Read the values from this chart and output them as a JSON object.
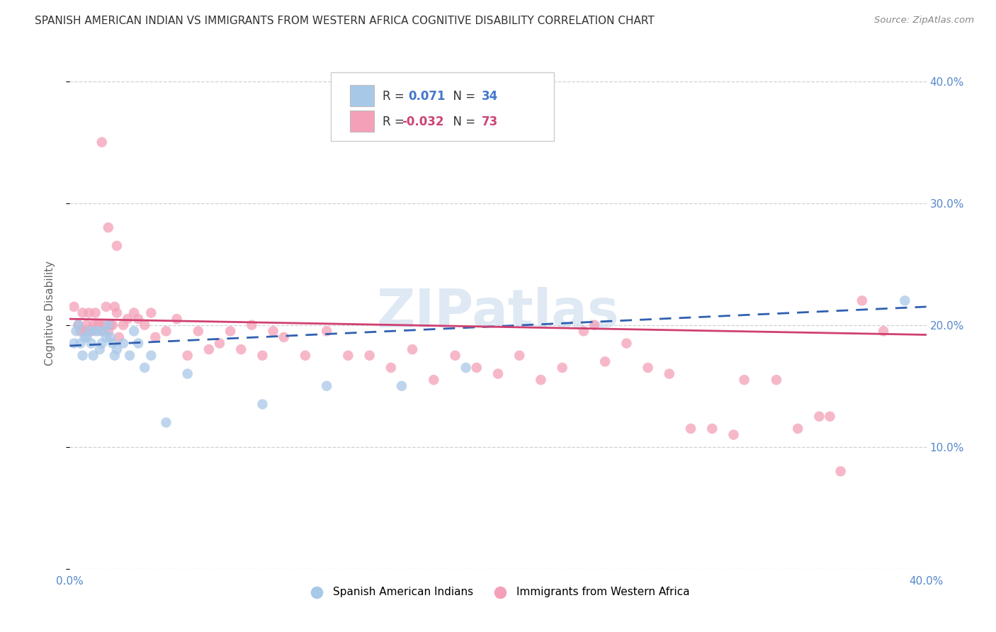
{
  "title": "SPANISH AMERICAN INDIAN VS IMMIGRANTS FROM WESTERN AFRICA COGNITIVE DISABILITY CORRELATION CHART",
  "source": "Source: ZipAtlas.com",
  "ylabel": "Cognitive Disability",
  "color_blue": "#A8C8E8",
  "color_pink": "#F4A0B8",
  "trendline_blue_color": "#3060B0",
  "trendline_pink_color": "#D04070",
  "watermark": "ZIPatlas",
  "background_color": "#FFFFFF",
  "blue_scatter_x": [
    0.002,
    0.003,
    0.004,
    0.005,
    0.006,
    0.007,
    0.008,
    0.009,
    0.01,
    0.011,
    0.012,
    0.013,
    0.014,
    0.015,
    0.016,
    0.017,
    0.018,
    0.019,
    0.02,
    0.021,
    0.022,
    0.025,
    0.028,
    0.03,
    0.032,
    0.035,
    0.038,
    0.045,
    0.055,
    0.09,
    0.12,
    0.155,
    0.185,
    0.39
  ],
  "blue_scatter_y": [
    0.185,
    0.195,
    0.2,
    0.185,
    0.175,
    0.19,
    0.19,
    0.195,
    0.185,
    0.175,
    0.195,
    0.195,
    0.18,
    0.185,
    0.195,
    0.19,
    0.2,
    0.19,
    0.185,
    0.175,
    0.18,
    0.185,
    0.175,
    0.195,
    0.185,
    0.165,
    0.175,
    0.12,
    0.16,
    0.135,
    0.15,
    0.15,
    0.165,
    0.22
  ],
  "pink_scatter_x": [
    0.002,
    0.004,
    0.005,
    0.006,
    0.007,
    0.008,
    0.009,
    0.01,
    0.011,
    0.012,
    0.013,
    0.014,
    0.015,
    0.016,
    0.017,
    0.018,
    0.019,
    0.02,
    0.021,
    0.022,
    0.023,
    0.025,
    0.027,
    0.03,
    0.032,
    0.035,
    0.038,
    0.04,
    0.045,
    0.05,
    0.055,
    0.06,
    0.065,
    0.07,
    0.075,
    0.08,
    0.085,
    0.09,
    0.095,
    0.1,
    0.11,
    0.12,
    0.13,
    0.14,
    0.15,
    0.16,
    0.17,
    0.18,
    0.19,
    0.2,
    0.21,
    0.22,
    0.23,
    0.24,
    0.245,
    0.25,
    0.26,
    0.27,
    0.28,
    0.29,
    0.3,
    0.31,
    0.315,
    0.33,
    0.34,
    0.35,
    0.355,
    0.37,
    0.38,
    0.015,
    0.018,
    0.022,
    0.36
  ],
  "pink_scatter_y": [
    0.215,
    0.2,
    0.195,
    0.21,
    0.195,
    0.2,
    0.21,
    0.195,
    0.2,
    0.21,
    0.2,
    0.2,
    0.195,
    0.2,
    0.215,
    0.195,
    0.2,
    0.2,
    0.215,
    0.21,
    0.19,
    0.2,
    0.205,
    0.21,
    0.205,
    0.2,
    0.21,
    0.19,
    0.195,
    0.205,
    0.175,
    0.195,
    0.18,
    0.185,
    0.195,
    0.18,
    0.2,
    0.175,
    0.195,
    0.19,
    0.175,
    0.195,
    0.175,
    0.175,
    0.165,
    0.18,
    0.155,
    0.175,
    0.165,
    0.16,
    0.175,
    0.155,
    0.165,
    0.195,
    0.2,
    0.17,
    0.185,
    0.165,
    0.16,
    0.115,
    0.115,
    0.11,
    0.155,
    0.155,
    0.115,
    0.125,
    0.125,
    0.22,
    0.195,
    0.35,
    0.28,
    0.265,
    0.08
  ]
}
